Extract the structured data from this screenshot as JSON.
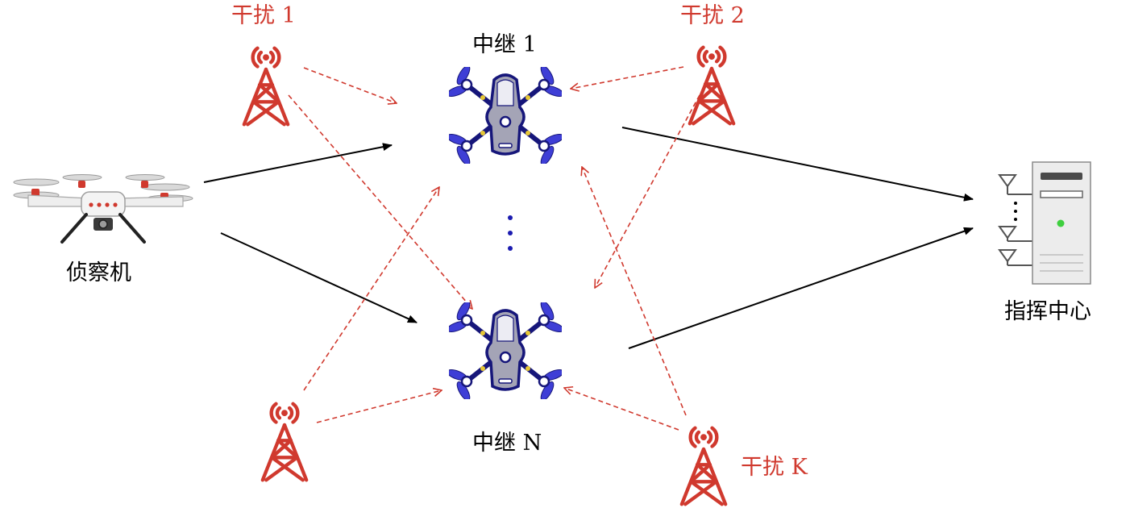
{
  "labels": {
    "scout": "侦察机",
    "relay_top": "中继 1",
    "relay_bottom": "中继 N",
    "command_center": "指挥中心",
    "jammer_1": "干扰 1",
    "jammer_2": "干扰 2",
    "jammer_k": "干扰 K"
  },
  "colors": {
    "jammer": "#d0392e",
    "link": "#000000",
    "ellipsis": "#1b1bb0"
  },
  "icons": {
    "scout": "quadcopter-drone-icon",
    "relay": "relay-drone-icon",
    "jammer": "radio-tower-icon",
    "command_center": "server-with-antennas-icon"
  }
}
